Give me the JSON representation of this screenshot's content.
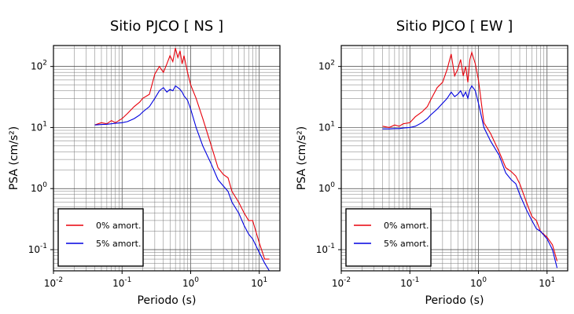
{
  "chart_data": [
    {
      "type": "line",
      "title": "Sitio PJCO [ NS ]",
      "xlabel": "Periodo (s)",
      "ylabel": "PSA (cm/s²)",
      "xscale": "log",
      "yscale": "log",
      "xlim": [
        0.01,
        20
      ],
      "ylim": [
        0.045,
        220
      ],
      "xticks": [
        "10-2",
        "10-1",
        "100",
        "101"
      ],
      "yticks": [
        "10-1",
        "100",
        "101",
        "102"
      ],
      "grid": true,
      "legend_position": "bottom-left",
      "series": [
        {
          "name": "0% amort.",
          "color": "#e8000b",
          "x": [
            0.04,
            0.05,
            0.06,
            0.07,
            0.08,
            0.1,
            0.12,
            0.15,
            0.18,
            0.2,
            0.25,
            0.3,
            0.35,
            0.4,
            0.45,
            0.5,
            0.55,
            0.6,
            0.65,
            0.7,
            0.75,
            0.8,
            0.9,
            1.0,
            1.2,
            1.5,
            2.0,
            2.5,
            3.0,
            3.5,
            4.0,
            5.0,
            6.0,
            7.0,
            8.0,
            10.0,
            12.0,
            14.0
          ],
          "y": [
            11,
            12,
            11.5,
            13,
            12,
            14,
            17,
            22,
            26,
            30,
            35,
            75,
            100,
            80,
            110,
            150,
            120,
            200,
            140,
            180,
            110,
            150,
            80,
            50,
            30,
            14,
            5,
            2.2,
            1.7,
            1.5,
            0.9,
            0.6,
            0.4,
            0.3,
            0.3,
            0.13,
            0.07,
            0.07
          ]
        },
        {
          "name": "5% amort.",
          "color": "#0000e0",
          "x": [
            0.04,
            0.05,
            0.06,
            0.07,
            0.08,
            0.1,
            0.12,
            0.15,
            0.18,
            0.2,
            0.25,
            0.3,
            0.35,
            0.4,
            0.45,
            0.5,
            0.55,
            0.6,
            0.65,
            0.7,
            0.75,
            0.8,
            0.9,
            1.0,
            1.2,
            1.5,
            2.0,
            2.5,
            3.0,
            3.5,
            4.0,
            5.0,
            6.0,
            7.0,
            8.0,
            10.0,
            12.0,
            14.0
          ],
          "y": [
            11,
            11.2,
            11.3,
            11.5,
            11.7,
            12,
            12.5,
            14,
            16,
            18,
            22,
            30,
            40,
            45,
            38,
            42,
            40,
            48,
            45,
            42,
            38,
            33,
            28,
            20,
            10,
            5,
            2.5,
            1.4,
            1.1,
            0.9,
            0.6,
            0.4,
            0.25,
            0.18,
            0.15,
            0.09,
            0.06,
            0.045
          ]
        }
      ]
    },
    {
      "type": "line",
      "title": "Sitio PJCO [ EW ]",
      "xlabel": "Periodo (s)",
      "ylabel": "PSA (cm/s²)",
      "xscale": "log",
      "yscale": "log",
      "xlim": [
        0.01,
        20
      ],
      "ylim": [
        0.045,
        220
      ],
      "xticks": [
        "10-2",
        "10-1",
        "100",
        "101"
      ],
      "yticks": [
        "10-1",
        "100",
        "101",
        "102"
      ],
      "grid": true,
      "legend_position": "bottom-left",
      "series": [
        {
          "name": "0% amort.",
          "color": "#e8000b",
          "x": [
            0.04,
            0.05,
            0.06,
            0.07,
            0.08,
            0.1,
            0.12,
            0.15,
            0.18,
            0.2,
            0.25,
            0.3,
            0.35,
            0.4,
            0.45,
            0.5,
            0.55,
            0.6,
            0.65,
            0.7,
            0.75,
            0.8,
            0.9,
            1.0,
            1.2,
            1.5,
            2.0,
            2.5,
            3.0,
            3.5,
            4.0,
            5.0,
            6.0,
            7.0,
            8.0,
            10.0,
            12.0,
            14.0
          ],
          "y": [
            10.5,
            10,
            11,
            10.5,
            11.5,
            12,
            15,
            18,
            22,
            28,
            45,
            55,
            90,
            160,
            70,
            90,
            130,
            70,
            100,
            55,
            130,
            170,
            110,
            60,
            12,
            8,
            4,
            2.2,
            1.9,
            1.6,
            1.2,
            0.6,
            0.35,
            0.3,
            0.2,
            0.16,
            0.12,
            0.065
          ]
        },
        {
          "name": "5% amort.",
          "color": "#0000e0",
          "x": [
            0.04,
            0.05,
            0.06,
            0.07,
            0.08,
            0.1,
            0.12,
            0.15,
            0.18,
            0.2,
            0.25,
            0.3,
            0.35,
            0.4,
            0.45,
            0.5,
            0.55,
            0.6,
            0.65,
            0.7,
            0.75,
            0.8,
            0.9,
            1.0,
            1.2,
            1.5,
            2.0,
            2.5,
            3.0,
            3.5,
            4.0,
            5.0,
            6.0,
            7.0,
            8.0,
            10.0,
            12.0,
            14.0
          ],
          "y": [
            9.5,
            9.5,
            9.6,
            9.6,
            9.8,
            10,
            10.5,
            12,
            14,
            16,
            20,
            25,
            30,
            38,
            32,
            35,
            40,
            32,
            38,
            30,
            42,
            48,
            40,
            25,
            10,
            6,
            3.5,
            1.8,
            1.4,
            1.2,
            0.8,
            0.45,
            0.3,
            0.22,
            0.2,
            0.15,
            0.1,
            0.05
          ]
        }
      ]
    }
  ]
}
